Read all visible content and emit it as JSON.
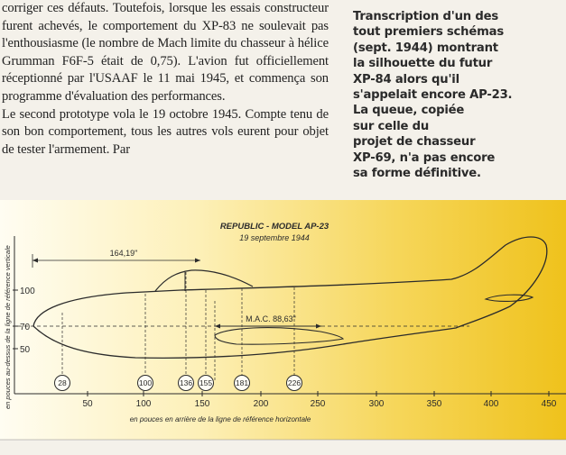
{
  "article": {
    "paragraphs": [
      "corriger ces défauts. Toutefois, lorsque les essais constructeur furent achevés, le comportement du XP-83 ne soulevait pas l'enthousiasme (le nombre de Mach limite du chasseur à hélice Grumman F6F-5 était de 0,75). L'avion fut officiellement réceptionné par l'USAAF le 11 mai 1945, et commença son programme d'évaluation des performances.",
      "Le second prototype vola le 19 octobre 1945. Compte tenu de son bon comportement, tous les autres vols eurent pour objet de tester l'armement. Par"
    ]
  },
  "caption": {
    "lines": [
      "Transcription d'un des",
      "tout premiers schémas",
      "(sept. 1944) montrant",
      "la silhouette du futur",
      "XP-84 alors qu'il",
      "s'appelait encore AP-23.",
      "La queue, copiée",
      "sur celle du",
      "projet de chasseur",
      "XP-69, n'a pas encore",
      "sa forme définitive."
    ]
  },
  "figure": {
    "title": "REPUBLIC - MODEL AP-23",
    "date": "19 septembre 1944",
    "dimension_label": "164,19\"",
    "mac_label": "M.A.C. 88,63\"",
    "x_axis_label": "en pouces en arrière de la ligne de référence horizontale",
    "y_axis_label": "en pouces au-dessus de la ligne de référence verticale",
    "x_ticks": [
      "50",
      "100",
      "150",
      "200",
      "250",
      "300",
      "350",
      "400",
      "450"
    ],
    "y_ticks": [
      "100",
      "70",
      "50"
    ],
    "stations": [
      "28",
      "100",
      "136",
      "155",
      "181",
      "226"
    ],
    "colors": {
      "gradient_light": "#fdf6d2",
      "gradient_dark": "#f0c521",
      "ink": "#2b2b2b"
    }
  }
}
